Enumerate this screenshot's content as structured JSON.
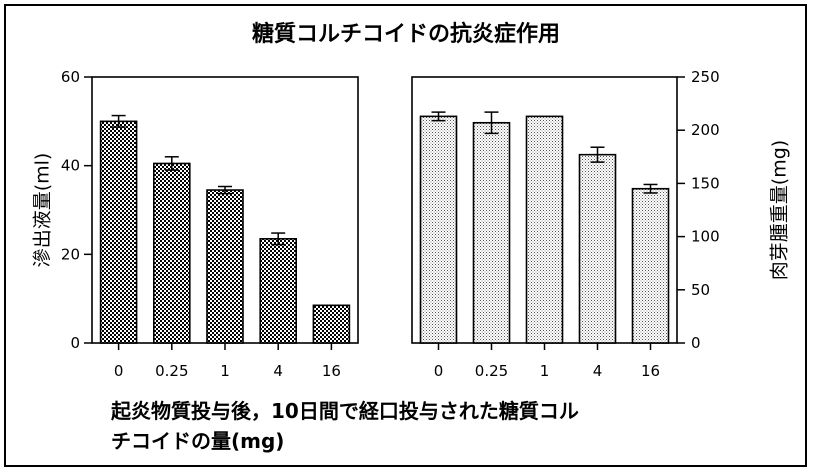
{
  "title": "糖質コルチコイドの抗炎症作用",
  "caption": [
    "起炎物質投与後，10日間で経口投与された糖質コル",
    "チコイドの量(mg)"
  ],
  "chart_data": [
    {
      "type": "bar",
      "panel": "left",
      "categories": [
        "0",
        "0.25",
        "1",
        "4",
        "16"
      ],
      "values": [
        50,
        40.5,
        34.5,
        23.5,
        8.5
      ],
      "errors": [
        1.3,
        1.5,
        0.8,
        1.3,
        0
      ],
      "ylabel": "滲出液量(ml)",
      "ylim": [
        0,
        60
      ],
      "yticks": [
        "0",
        "20",
        "40",
        "60"
      ],
      "ytick_values": [
        0,
        20,
        40,
        60
      ],
      "y_axis_side": "left",
      "fill_pattern": "dense-crosshatch",
      "grid": false
    },
    {
      "type": "bar",
      "panel": "right",
      "categories": [
        "0",
        "0.25",
        "1",
        "4",
        "16"
      ],
      "values": [
        213,
        207,
        213,
        177,
        145
      ],
      "errors": [
        4,
        10,
        0,
        7,
        4
      ],
      "ylabel": "肉芽腫重量(mg)",
      "ylim": [
        0,
        250
      ],
      "yticks": [
        "0",
        "50",
        "100",
        "150",
        "200",
        "250"
      ],
      "ytick_values": [
        0,
        50,
        100,
        150,
        200,
        250
      ],
      "y_axis_side": "right",
      "fill_pattern": "light-dots",
      "grid": false
    }
  ]
}
